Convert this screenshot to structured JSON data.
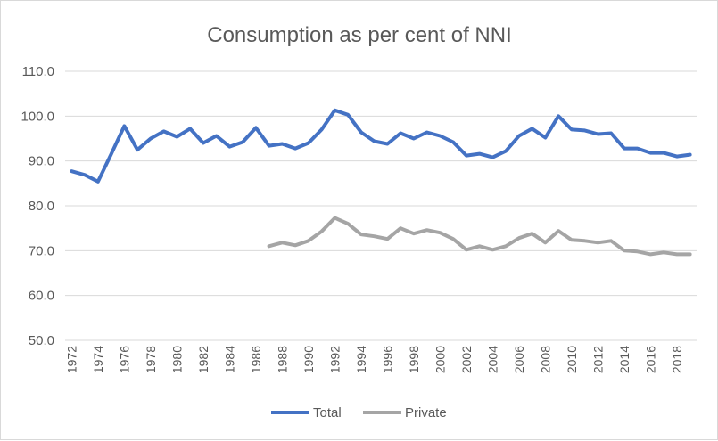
{
  "chart_data": {
    "type": "line",
    "title": "Consumption as per cent of NNI",
    "xlabel": "",
    "ylabel": "",
    "x": [
      1972,
      1973,
      1974,
      1975,
      1976,
      1977,
      1978,
      1979,
      1980,
      1981,
      1982,
      1983,
      1984,
      1985,
      1986,
      1987,
      1988,
      1989,
      1990,
      1991,
      1992,
      1993,
      1994,
      1995,
      1996,
      1997,
      1998,
      1999,
      2000,
      2001,
      2002,
      2003,
      2004,
      2005,
      2006,
      2007,
      2008,
      2009,
      2010,
      2011,
      2012,
      2013,
      2014,
      2015,
      2016,
      2017,
      2018,
      2019
    ],
    "x_tick_labels": [
      "1972",
      "1974",
      "1976",
      "1978",
      "1980",
      "1982",
      "1984",
      "1986",
      "1988",
      "1990",
      "1992",
      "1994",
      "1996",
      "1998",
      "2000",
      "2002",
      "2004",
      "2006",
      "2008",
      "2010",
      "2012",
      "2014",
      "2016",
      "2018"
    ],
    "y_tick_labels": [
      "50.0",
      "60.0",
      "70.0",
      "80.0",
      "90.0",
      "100.0",
      "110.0"
    ],
    "ylim": [
      50,
      110
    ],
    "y_ticks": [
      50,
      60,
      70,
      80,
      90,
      100,
      110
    ],
    "grid": true,
    "legend_position": "bottom",
    "series": [
      {
        "name": "Total",
        "color": "#4472c4",
        "values": [
          87.7,
          86.9,
          85.4,
          91.5,
          97.8,
          92.5,
          95.0,
          96.6,
          95.4,
          97.2,
          94.0,
          95.6,
          93.2,
          94.2,
          97.4,
          93.4,
          93.8,
          92.8,
          94.0,
          97.0,
          101.3,
          100.3,
          96.4,
          94.4,
          93.8,
          96.2,
          95.0,
          96.4,
          95.6,
          94.2,
          91.2,
          91.6,
          90.8,
          92.2,
          95.6,
          97.2,
          95.2,
          100.0,
          97.0,
          96.8,
          96.0,
          96.2,
          92.8,
          92.8,
          91.8,
          91.8,
          91.0,
          91.4
        ]
      },
      {
        "name": "Private",
        "color": "#a5a5a5",
        "values": [
          null,
          null,
          null,
          null,
          null,
          null,
          null,
          null,
          null,
          null,
          null,
          null,
          null,
          null,
          null,
          71.0,
          71.8,
          71.2,
          72.2,
          74.3,
          77.3,
          76.0,
          73.6,
          73.2,
          72.6,
          75.0,
          73.8,
          74.6,
          74.0,
          72.6,
          70.2,
          71.0,
          70.2,
          71.0,
          72.8,
          73.8,
          71.8,
          74.4,
          72.4,
          72.2,
          71.8,
          72.2,
          70.0,
          69.8,
          69.2,
          69.6,
          69.2,
          69.2
        ]
      }
    ]
  }
}
